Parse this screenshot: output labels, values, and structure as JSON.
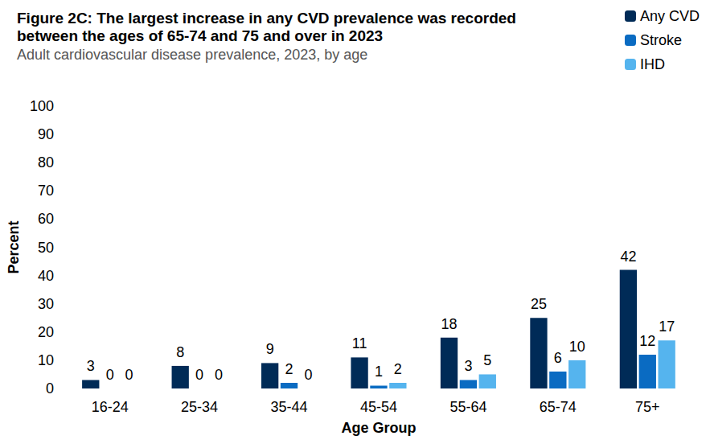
{
  "chart_data": {
    "type": "bar",
    "title": "Figure 2C: The largest increase in any CVD prevalence was recorded between the ages of 65-74 and 75 and over in 2023",
    "subtitle": "Adult cardiovascular disease prevalence, 2023, by age",
    "x_label": "Age Group",
    "y_label": "Percent",
    "categories": [
      "16-24",
      "25-34",
      "35-44",
      "45-54",
      "55-64",
      "65-74",
      "75+"
    ],
    "series": [
      {
        "name": "Any CVD",
        "color": "#002b57",
        "values": [
          3,
          8,
          9,
          11,
          18,
          25,
          42
        ]
      },
      {
        "name": "Stroke",
        "color": "#0a6bc2",
        "values": [
          0,
          0,
          2,
          1,
          3,
          6,
          12
        ]
      },
      {
        "name": "IHD",
        "color": "#55b4ee",
        "values": [
          0,
          0,
          0,
          2,
          5,
          10,
          17
        ]
      }
    ],
    "ylim": [
      0,
      100
    ],
    "yticks": [
      0,
      10,
      20,
      30,
      40,
      50,
      60,
      70,
      80,
      90,
      100
    ],
    "grid": false,
    "legend": "top-right",
    "data_labels": true
  }
}
